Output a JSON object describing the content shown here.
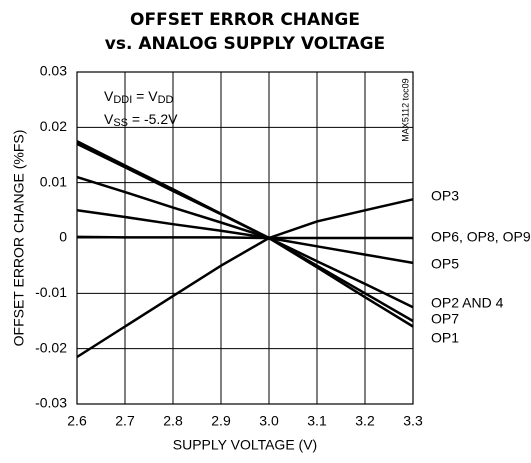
{
  "chart_data": {
    "type": "line",
    "title": [
      "OFFSET ERROR CHANGE",
      "vs. ANALOG SUPPLY VOLTAGE"
    ],
    "xlabel": "SUPPLY VOLTAGE (V)",
    "ylabel": "OFFSET ERROR CHANGE (%FS)",
    "annotations": [
      {
        "parts": [
          "V",
          "DDI",
          " = V",
          "DD"
        ]
      },
      {
        "parts": [
          "V",
          "SS",
          " = -5.2V"
        ]
      }
    ],
    "side_note": "MAX5112 toc09",
    "x": [
      2.6,
      2.7,
      2.8,
      2.9,
      3.0,
      3.1,
      3.2,
      3.3
    ],
    "series": [
      {
        "name": "OP3",
        "color": "#000000",
        "values": [
          -0.0215,
          -0.016,
          -0.0105,
          -0.005,
          0,
          0.003,
          0.005,
          0.007
        ]
      },
      {
        "name": "OP6, OP8, OP9",
        "color": "#000000",
        "values": [
          0.0002,
          0.0001,
          0.0001,
          0.0001,
          0,
          0,
          0,
          0
        ]
      },
      {
        "name": "OP5",
        "color": "#000000",
        "values": [
          0.005,
          0.0038,
          0.0025,
          0.0013,
          0,
          -0.0015,
          -0.003,
          -0.0045
        ]
      },
      {
        "name": "OP2 AND 4",
        "color": "#000000",
        "values": [
          0.011,
          0.0083,
          0.0055,
          0.0028,
          0,
          -0.0042,
          -0.0083,
          -0.0125
        ]
      },
      {
        "name": "OP7",
        "color": "#000000",
        "values": [
          0.017,
          0.0128,
          0.0085,
          0.0043,
          0,
          -0.005,
          -0.01,
          -0.015
        ]
      },
      {
        "name": "OP1",
        "color": "#000000",
        "values": [
          0.0175,
          0.0131,
          0.0088,
          0.0044,
          0,
          -0.0053,
          -0.0107,
          -0.016
        ]
      }
    ],
    "xlim": [
      2.6,
      3.3
    ],
    "xticks": [
      2.6,
      2.7,
      2.8,
      2.9,
      {
        "value": 3,
        "label": "3.0"
      },
      3.1,
      3.2,
      3.3
    ],
    "ylim": [
      -0.03,
      0.03
    ],
    "yticks": [
      -0.03,
      -0.02,
      -0.01,
      0,
      0.01,
      0.02,
      0.03
    ],
    "grid": true
  }
}
